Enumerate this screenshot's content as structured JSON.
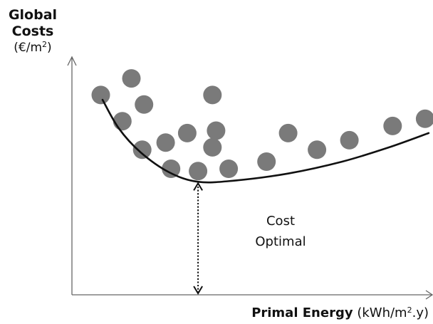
{
  "chart_data": {
    "type": "scatter",
    "ylabel_line1": "Global",
    "ylabel_line2": "Costs",
    "yunit_prefix": "(€/m",
    "yunit_sup": "2",
    "yunit_suffix": ")",
    "xlabel_bold": "Primal Energy",
    "xunit_prefix": "(kWh/m",
    "xunit_sup": "2",
    "xunit_suffix": ".y)",
    "annotation_line1": "Cost",
    "annotation_line2": "Optimal",
    "xlim": [
      0,
      100
    ],
    "ylim": [
      0,
      100
    ],
    "points": [
      {
        "x": 8,
        "y": 84
      },
      {
        "x": 16.5,
        "y": 91
      },
      {
        "x": 20,
        "y": 80
      },
      {
        "x": 14,
        "y": 73
      },
      {
        "x": 19.5,
        "y": 61
      },
      {
        "x": 26,
        "y": 64
      },
      {
        "x": 32,
        "y": 68
      },
      {
        "x": 39,
        "y": 84
      },
      {
        "x": 40,
        "y": 69
      },
      {
        "x": 39,
        "y": 62
      },
      {
        "x": 27.5,
        "y": 53
      },
      {
        "x": 35,
        "y": 52
      },
      {
        "x": 43.5,
        "y": 53
      },
      {
        "x": 54,
        "y": 56
      },
      {
        "x": 60,
        "y": 68
      },
      {
        "x": 68,
        "y": 61
      },
      {
        "x": 77,
        "y": 65
      },
      {
        "x": 89,
        "y": 71
      },
      {
        "x": 98,
        "y": 74
      }
    ],
    "curve": [
      {
        "x": 8.5,
        "y": 82
      },
      {
        "x": 13,
        "y": 70
      },
      {
        "x": 19,
        "y": 60
      },
      {
        "x": 27,
        "y": 51.5
      },
      {
        "x": 35,
        "y": 47.5
      },
      {
        "x": 45,
        "y": 48
      },
      {
        "x": 60,
        "y": 51
      },
      {
        "x": 75,
        "y": 56
      },
      {
        "x": 88,
        "y": 62
      },
      {
        "x": 99,
        "y": 68
      }
    ],
    "optimum": {
      "x": 35,
      "y": 47.5
    }
  }
}
